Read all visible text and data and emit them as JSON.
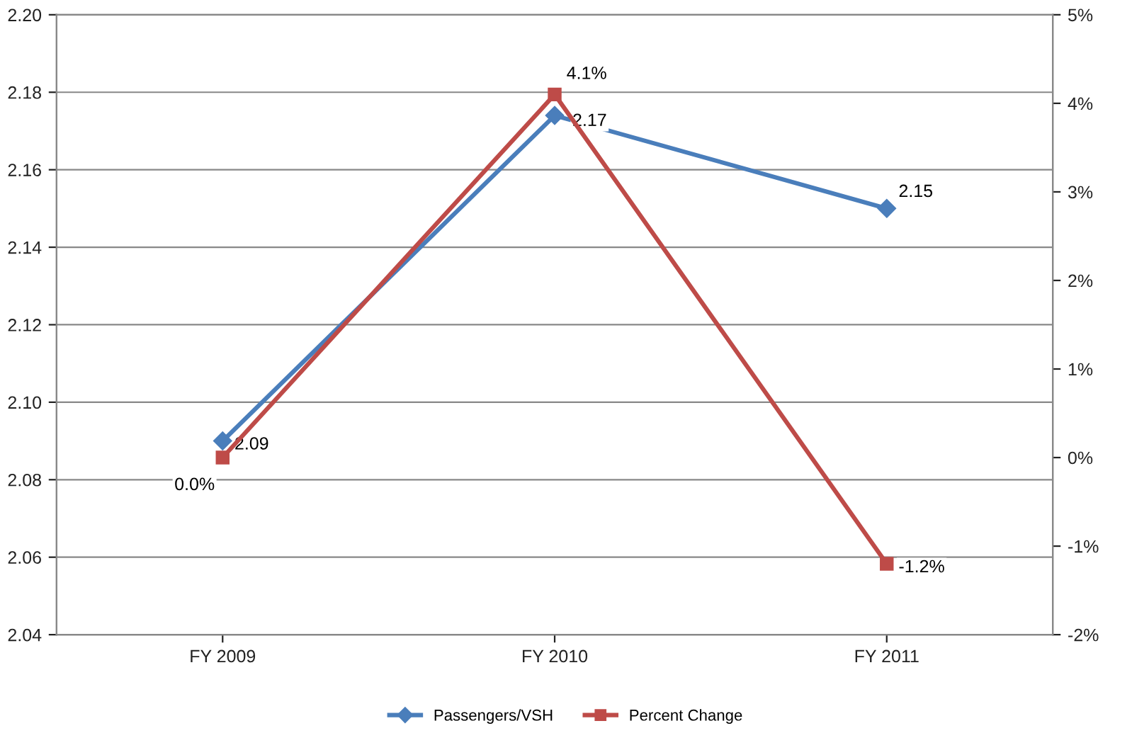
{
  "chart_data": {
    "type": "line",
    "categories": [
      "FY 2009",
      "FY 2010",
      "FY 2011"
    ],
    "series": [
      {
        "name": "Passengers/VSH",
        "color": "#4a7ebb",
        "marker": "diamond",
        "values": [
          2.09,
          2.174,
          2.15
        ],
        "value_labels": [
          "2.09",
          "2.17",
          "2.15"
        ]
      },
      {
        "name": "Percent Change",
        "color": "#be4b48",
        "marker": "square",
        "axis": "y2",
        "values": [
          0.0,
          4.1,
          -1.2
        ],
        "value_labels": [
          "0.0%",
          "4.1%",
          "-1.2%"
        ]
      }
    ],
    "ylim": [
      2.04,
      2.2
    ],
    "yticks": [
      {
        "value": 2.04,
        "label": "2.04"
      },
      {
        "value": 2.06,
        "label": "2.06"
      },
      {
        "value": 2.08,
        "label": "2.08"
      },
      {
        "value": 2.1,
        "label": "2.10"
      },
      {
        "value": 2.12,
        "label": "2.12"
      },
      {
        "value": 2.14,
        "label": "2.14"
      },
      {
        "value": 2.16,
        "label": "2.16"
      },
      {
        "value": 2.18,
        "label": "2.18"
      },
      {
        "value": 2.2,
        "label": "2.20"
      }
    ],
    "y2lim": [
      -2,
      5
    ],
    "y2ticks": [
      {
        "value": -2,
        "label": "-2%"
      },
      {
        "value": -1,
        "label": "-1%"
      },
      {
        "value": 0,
        "label": "0%"
      },
      {
        "value": 1,
        "label": "1%"
      },
      {
        "value": 2,
        "label": "2%"
      },
      {
        "value": 3,
        "label": "3%"
      },
      {
        "value": 4,
        "label": "4%"
      },
      {
        "value": 5,
        "label": "5%"
      }
    ],
    "grid": "y",
    "legend": "bottom",
    "line_style": "solid"
  }
}
